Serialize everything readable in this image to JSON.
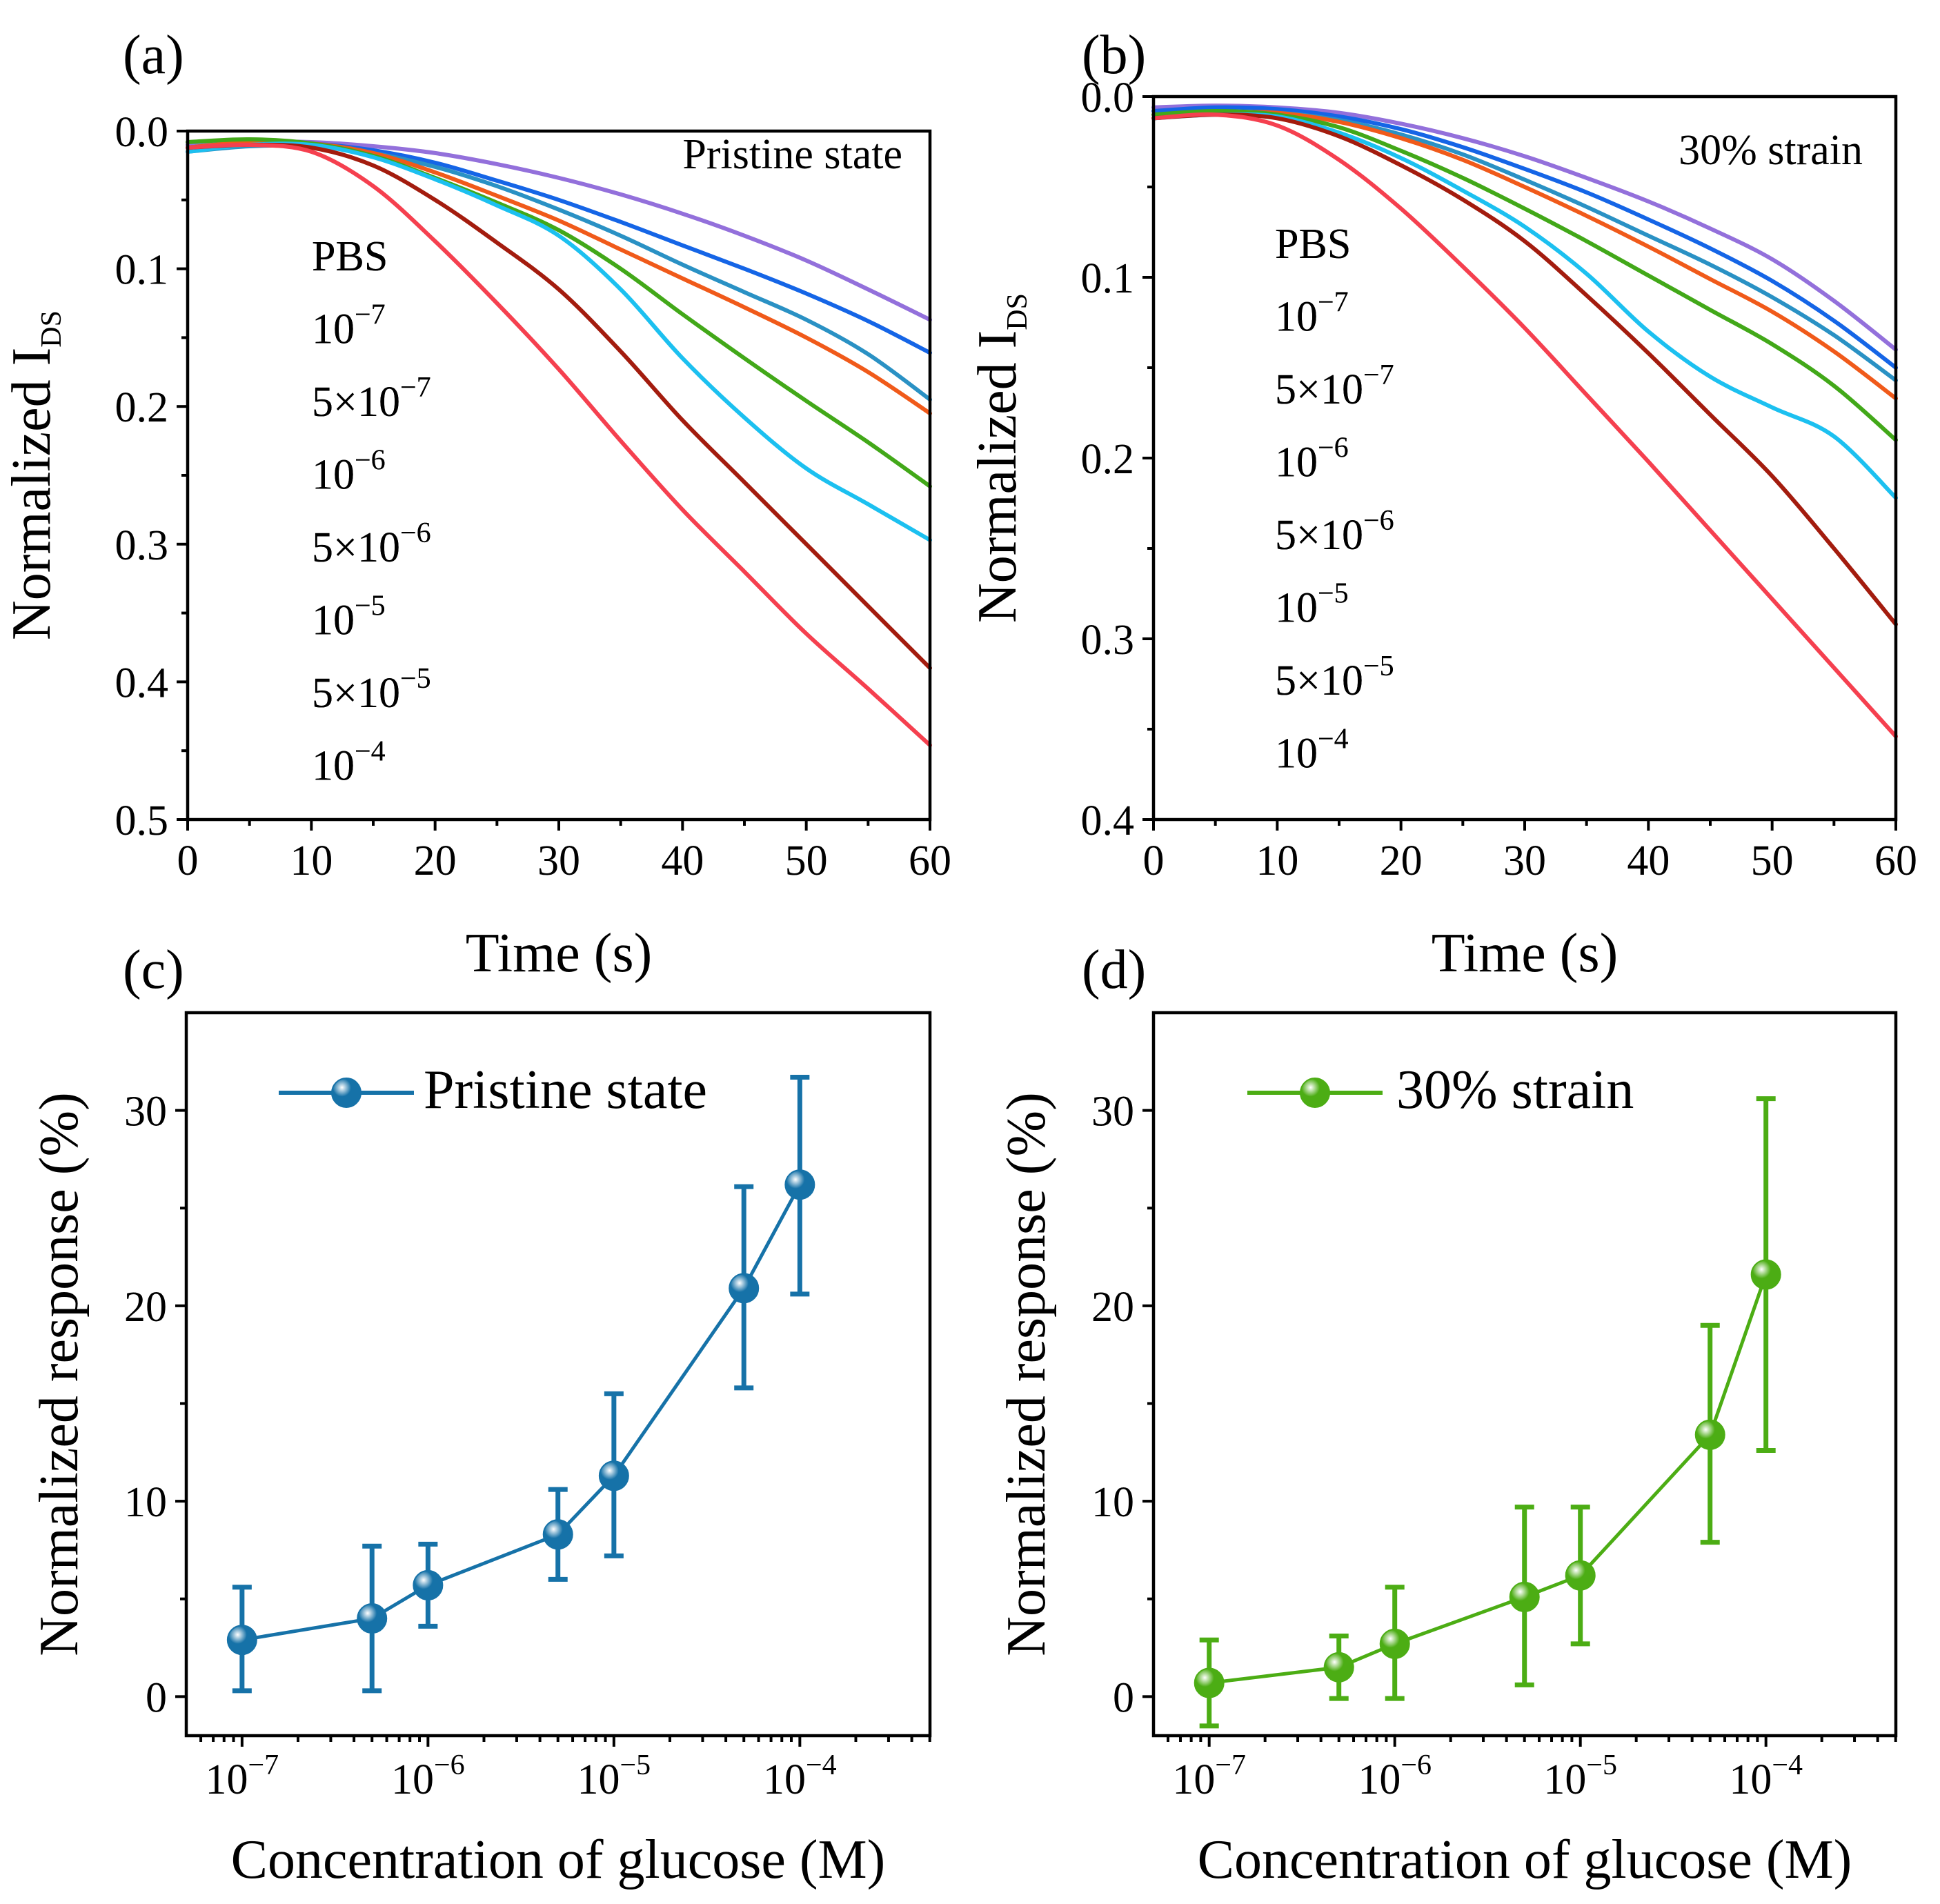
{
  "panels": {
    "a": {
      "label": "(a)",
      "state": "Pristine state"
    },
    "b": {
      "label": "(b)",
      "state": "30% strain"
    },
    "c": {
      "label": "(c)",
      "legend": "Pristine state"
    },
    "d": {
      "label": "(d)",
      "legend": "30% strain"
    }
  },
  "legend_entries": [
    {
      "id": "pbs",
      "label": "PBS",
      "mant": "",
      "exp": "",
      "color": "#9370DB"
    },
    {
      "id": "1e-7",
      "label": "",
      "mant": "",
      "exp": "−7",
      "color": "#1565E6"
    },
    {
      "id": "5e-7",
      "label": "",
      "mant": "5",
      "exp": "−7",
      "color": "#2A91C4"
    },
    {
      "id": "1e-6",
      "label": "",
      "mant": "",
      "exp": "−6",
      "color": "#F05A1A"
    },
    {
      "id": "5e-6",
      "label": "",
      "mant": "5",
      "exp": "−6",
      "color": "#42A819"
    },
    {
      "id": "1e-5",
      "label": "",
      "mant": "",
      "exp": "−5",
      "color": "#1CC0F0"
    },
    {
      "id": "5e-5",
      "label": "",
      "mant": "5",
      "exp": "−5",
      "color": "#A31C0E"
    },
    {
      "id": "1e-4",
      "label": "",
      "mant": "",
      "exp": "−4",
      "color": "#F5404F"
    }
  ],
  "text_bits": {
    "ten": "10",
    "times": "×",
    "ids_main": "Normalized I",
    "ids_sub": "DS"
  },
  "chart_data": [
    {
      "id": "a",
      "type": "line",
      "title": "Pristine state",
      "xlabel": "Time (s)",
      "ylabel": "Normalized IDS",
      "xlim": [
        0,
        60
      ],
      "ylim": [
        0.5,
        0.0
      ],
      "y_inverted": true,
      "xticks": [
        0,
        10,
        20,
        30,
        40,
        50,
        60
      ],
      "yticks": [
        0.0,
        0.1,
        0.2,
        0.3,
        0.4,
        0.5
      ],
      "ytick_labels": [
        "0.0",
        "0.1",
        "0.2",
        "0.3",
        "0.4",
        "0.5"
      ],
      "x": [
        0,
        5,
        10,
        15,
        20,
        25,
        30,
        35,
        40,
        45,
        50,
        55,
        60
      ],
      "series": [
        {
          "name": "PBS",
          "values": [
            0.01,
            0.008,
            0.008,
            0.011,
            0.016,
            0.024,
            0.034,
            0.046,
            0.06,
            0.076,
            0.094,
            0.115,
            0.137
          ]
        },
        {
          "name": "1e-7",
          "values": [
            0.012,
            0.008,
            0.009,
            0.014,
            0.023,
            0.036,
            0.05,
            0.066,
            0.083,
            0.1,
            0.118,
            0.138,
            0.161
          ]
        },
        {
          "name": "5e-7",
          "values": [
            0.015,
            0.011,
            0.011,
            0.016,
            0.026,
            0.04,
            0.057,
            0.076,
            0.097,
            0.117,
            0.137,
            0.162,
            0.195
          ]
        },
        {
          "name": "1e-6",
          "values": [
            0.012,
            0.008,
            0.009,
            0.016,
            0.03,
            0.047,
            0.065,
            0.086,
            0.107,
            0.128,
            0.15,
            0.175,
            0.205
          ]
        },
        {
          "name": "5e-6",
          "values": [
            0.008,
            0.006,
            0.009,
            0.018,
            0.034,
            0.052,
            0.072,
            0.1,
            0.133,
            0.165,
            0.196,
            0.226,
            0.258
          ]
        },
        {
          "name": "1e-5",
          "values": [
            0.015,
            0.01,
            0.01,
            0.019,
            0.035,
            0.054,
            0.076,
            0.115,
            0.165,
            0.208,
            0.245,
            0.271,
            0.297
          ]
        },
        {
          "name": "5e-5",
          "values": [
            0.012,
            0.01,
            0.012,
            0.025,
            0.05,
            0.081,
            0.115,
            0.16,
            0.21,
            0.255,
            0.3,
            0.345,
            0.39
          ]
        },
        {
          "name": "1e-4",
          "values": [
            0.012,
            0.01,
            0.015,
            0.04,
            0.08,
            0.125,
            0.173,
            0.225,
            0.275,
            0.32,
            0.365,
            0.405,
            0.446
          ]
        }
      ]
    },
    {
      "id": "b",
      "type": "line",
      "title": "30% strain",
      "xlabel": "Time (s)",
      "ylabel": "Normalized IDS",
      "xlim": [
        0,
        60
      ],
      "ylim": [
        0.4,
        0.0
      ],
      "y_inverted": true,
      "xticks": [
        0,
        10,
        20,
        30,
        40,
        50,
        60
      ],
      "yticks": [
        0.0,
        0.1,
        0.2,
        0.3,
        0.4
      ],
      "ytick_labels": [
        "0.0",
        "0.1",
        "0.2",
        "0.3",
        "0.4"
      ],
      "x": [
        0,
        5,
        10,
        15,
        20,
        25,
        30,
        35,
        40,
        45,
        50,
        55,
        60
      ],
      "series": [
        {
          "name": "PBS",
          "values": [
            0.006,
            0.005,
            0.006,
            0.009,
            0.015,
            0.023,
            0.033,
            0.045,
            0.058,
            0.073,
            0.09,
            0.113,
            0.14
          ]
        },
        {
          "name": "1e-7",
          "values": [
            0.008,
            0.006,
            0.007,
            0.011,
            0.018,
            0.028,
            0.04,
            0.053,
            0.068,
            0.084,
            0.102,
            0.124,
            0.15
          ]
        },
        {
          "name": "5e-7",
          "values": [
            0.012,
            0.009,
            0.009,
            0.013,
            0.021,
            0.032,
            0.046,
            0.061,
            0.077,
            0.093,
            0.111,
            0.132,
            0.157
          ]
        },
        {
          "name": "1e-6",
          "values": [
            0.012,
            0.009,
            0.009,
            0.014,
            0.023,
            0.035,
            0.05,
            0.066,
            0.083,
            0.101,
            0.119,
            0.141,
            0.167
          ]
        },
        {
          "name": "5e-6",
          "values": [
            0.01,
            0.008,
            0.01,
            0.017,
            0.03,
            0.045,
            0.062,
            0.08,
            0.099,
            0.118,
            0.137,
            0.16,
            0.19
          ]
        },
        {
          "name": "1e-5",
          "values": [
            0.012,
            0.01,
            0.011,
            0.02,
            0.034,
            0.052,
            0.072,
            0.098,
            0.13,
            0.155,
            0.172,
            0.188,
            0.222
          ]
        },
        {
          "name": "5e-5",
          "values": [
            0.012,
            0.01,
            0.012,
            0.022,
            0.038,
            0.057,
            0.08,
            0.11,
            0.142,
            0.176,
            0.21,
            0.25,
            0.292
          ]
        },
        {
          "name": "1e-4",
          "values": [
            0.012,
            0.01,
            0.016,
            0.035,
            0.062,
            0.094,
            0.128,
            0.165,
            0.202,
            0.24,
            0.278,
            0.316,
            0.354
          ]
        }
      ]
    },
    {
      "id": "c",
      "type": "line",
      "title": "Pristine state",
      "xlabel": "Concentration of glucose (M)",
      "ylabel": "Normalized response (%)",
      "x_scale": "log",
      "xlim_log10": [
        -7.3,
        -3.3
      ],
      "ylim": [
        -2,
        35
      ],
      "xticks_exp": [
        "−7",
        "−6",
        "−5",
        "−4"
      ],
      "yticks": [
        0,
        10,
        20,
        30
      ],
      "color": "#1672A8",
      "x": [
        1e-07,
        5e-07,
        1e-06,
        5e-06,
        1e-05,
        5e-05,
        0.0001
      ],
      "values": [
        2.9,
        4.0,
        5.7,
        8.3,
        11.3,
        20.9,
        26.2
      ],
      "err_low": [
        0.3,
        0.3,
        3.6,
        6.0,
        7.2,
        15.8,
        20.6
      ],
      "err_high": [
        5.6,
        7.7,
        7.8,
        10.6,
        15.5,
        26.1,
        31.7
      ]
    },
    {
      "id": "d",
      "type": "line",
      "title": "30% strain",
      "xlabel": "Concentration of glucose (M)",
      "ylabel": "Normalized response (%)",
      "x_scale": "log",
      "xlim_log10": [
        -7.3,
        -3.3
      ],
      "ylim": [
        -2,
        35
      ],
      "xticks_exp": [
        "−7",
        "−6",
        "−5",
        "−4"
      ],
      "yticks": [
        0,
        10,
        20,
        30
      ],
      "color": "#4CAD14",
      "x": [
        1e-07,
        5e-07,
        1e-06,
        5e-06,
        1e-05,
        5e-05,
        0.0001
      ],
      "values": [
        0.7,
        1.5,
        2.7,
        5.1,
        6.2,
        13.4,
        21.6
      ],
      "err_low": [
        -1.5,
        -0.1,
        -0.1,
        0.6,
        2.7,
        7.9,
        12.6
      ],
      "err_high": [
        2.9,
        3.1,
        5.6,
        9.7,
        9.7,
        19.0,
        30.6
      ]
    }
  ]
}
